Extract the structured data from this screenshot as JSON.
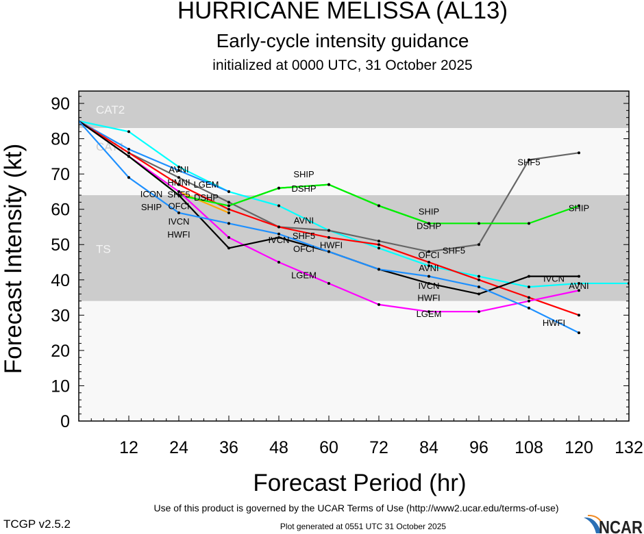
{
  "header": {
    "title": "HURRICANE MELISSA (AL13)",
    "subtitle": "Early-cycle intensity guidance",
    "subtitle2": "initialized at 0000 UTC, 31 October 2025"
  },
  "footer": {
    "terms": "Use of this product is governed by the UCAR Terms of Use (http://www2.ucar.edu/terms-of-use)",
    "generated": "Plot generated at 0551 UTC   31 October 2025",
    "version": "TCGP v2.5.2",
    "logo_text": "NCAR"
  },
  "chart_data": {
    "type": "line",
    "title": "HURRICANE MELISSA (AL13)",
    "xlabel": "Forecast Period (hr)",
    "ylabel": "Forecast Intensity (kt)",
    "xlim": [
      0,
      132
    ],
    "ylim": [
      0,
      93.5
    ],
    "xticks": [
      12,
      24,
      36,
      48,
      60,
      72,
      84,
      96,
      108,
      120,
      132
    ],
    "yticks": [
      0,
      10,
      20,
      30,
      40,
      50,
      60,
      70,
      80,
      90
    ],
    "grid": false,
    "bands": [
      {
        "name": "CAT2",
        "from": 83,
        "to": 96,
        "color": "#cccccc",
        "label_color": "#f4f4f4"
      },
      {
        "name": "CAT1",
        "from": 64,
        "to": 83,
        "color": "#f8f8f8",
        "label_color": "#cccccc"
      },
      {
        "name": "TS",
        "from": 34,
        "to": 64,
        "color": "#cccccc",
        "label_color": "#f4f4f4"
      },
      {
        "name": "",
        "from": 0,
        "to": 34,
        "color": "#f8f8f8",
        "label_color": "#cccccc"
      }
    ],
    "series": [
      {
        "name": "AVNI",
        "color": "#00ffff",
        "x": [
          0,
          12,
          24,
          36,
          48,
          60,
          72,
          84,
          96,
          108,
          120,
          132
        ],
        "y": [
          85,
          82,
          72,
          65,
          61,
          54,
          49,
          44,
          41,
          38,
          39,
          39
        ],
        "label_x": [
          24,
          54,
          84,
          120
        ]
      },
      {
        "name": "HMNI",
        "color": "#1e90ff",
        "x": [
          0,
          12,
          24,
          36
        ],
        "y": [
          85,
          77,
          71,
          65
        ],
        "label_x": [
          24
        ]
      },
      {
        "name": "SHF5",
        "color": "#666666",
        "x": [
          0,
          12,
          24,
          36,
          48,
          60,
          72,
          84,
          96,
          108,
          120
        ],
        "y": [
          85,
          76,
          69,
          62,
          55,
          54,
          51,
          48,
          50,
          74,
          76
        ],
        "label_x": [
          24,
          54,
          90,
          108
        ]
      },
      {
        "name": "OFCI",
        "color": "#ff0000",
        "x": [
          0,
          12,
          24,
          36,
          48,
          60,
          72,
          84,
          96,
          108,
          120
        ],
        "y": [
          85,
          76,
          67,
          60,
          55,
          52,
          50,
          45,
          40,
          35,
          30
        ],
        "label_x": [
          24,
          54,
          84
        ]
      },
      {
        "name": "ICON",
        "color": "#ffa500",
        "x": [
          0,
          12,
          24,
          36
        ],
        "y": [
          85,
          75,
          65,
          59
        ],
        "label_x": [
          24
        ]
      },
      {
        "name": "DSHP",
        "color": "#00ee00",
        "x": [
          0,
          12,
          24,
          36,
          48,
          60,
          72,
          84
        ],
        "y": [
          85,
          75,
          64,
          61,
          66,
          67,
          61,
          56
        ],
        "label_x": [
          24,
          54,
          84
        ]
      },
      {
        "name": "SHIP",
        "color": "#00ee00",
        "x": [
          0,
          12,
          24,
          36,
          48,
          60,
          72,
          84,
          96,
          108,
          120
        ],
        "y": [
          85,
          75,
          64,
          61,
          66,
          67,
          61,
          56,
          56,
          56,
          61
        ],
        "label_x": [
          24,
          54,
          84,
          120
        ]
      },
      {
        "name": "LGEM",
        "color": "#ff00ff",
        "x": [
          0,
          12,
          24,
          36,
          48,
          60,
          72,
          84,
          96,
          108,
          120
        ],
        "y": [
          85,
          75,
          65,
          52,
          45,
          39,
          33,
          31,
          31,
          34,
          37
        ],
        "label_x": [
          24,
          54,
          84
        ]
      },
      {
        "name": "IVCN",
        "color": "#000000",
        "x": [
          0,
          12,
          24,
          36,
          48,
          60,
          72,
          84,
          96,
          108,
          120
        ],
        "y": [
          85,
          75,
          64,
          49,
          52,
          48,
          43,
          39,
          36,
          41,
          41
        ],
        "label_x": [
          24,
          48,
          84,
          114
        ]
      },
      {
        "name": "HWFI",
        "color": "#1e90ff",
        "x": [
          0,
          12,
          24,
          36,
          48,
          60,
          72,
          84,
          96,
          108,
          120
        ],
        "y": [
          85,
          69,
          59,
          56,
          53,
          48,
          43,
          41,
          38,
          32,
          25
        ],
        "label_x": [
          24,
          54,
          84,
          114
        ]
      }
    ]
  }
}
